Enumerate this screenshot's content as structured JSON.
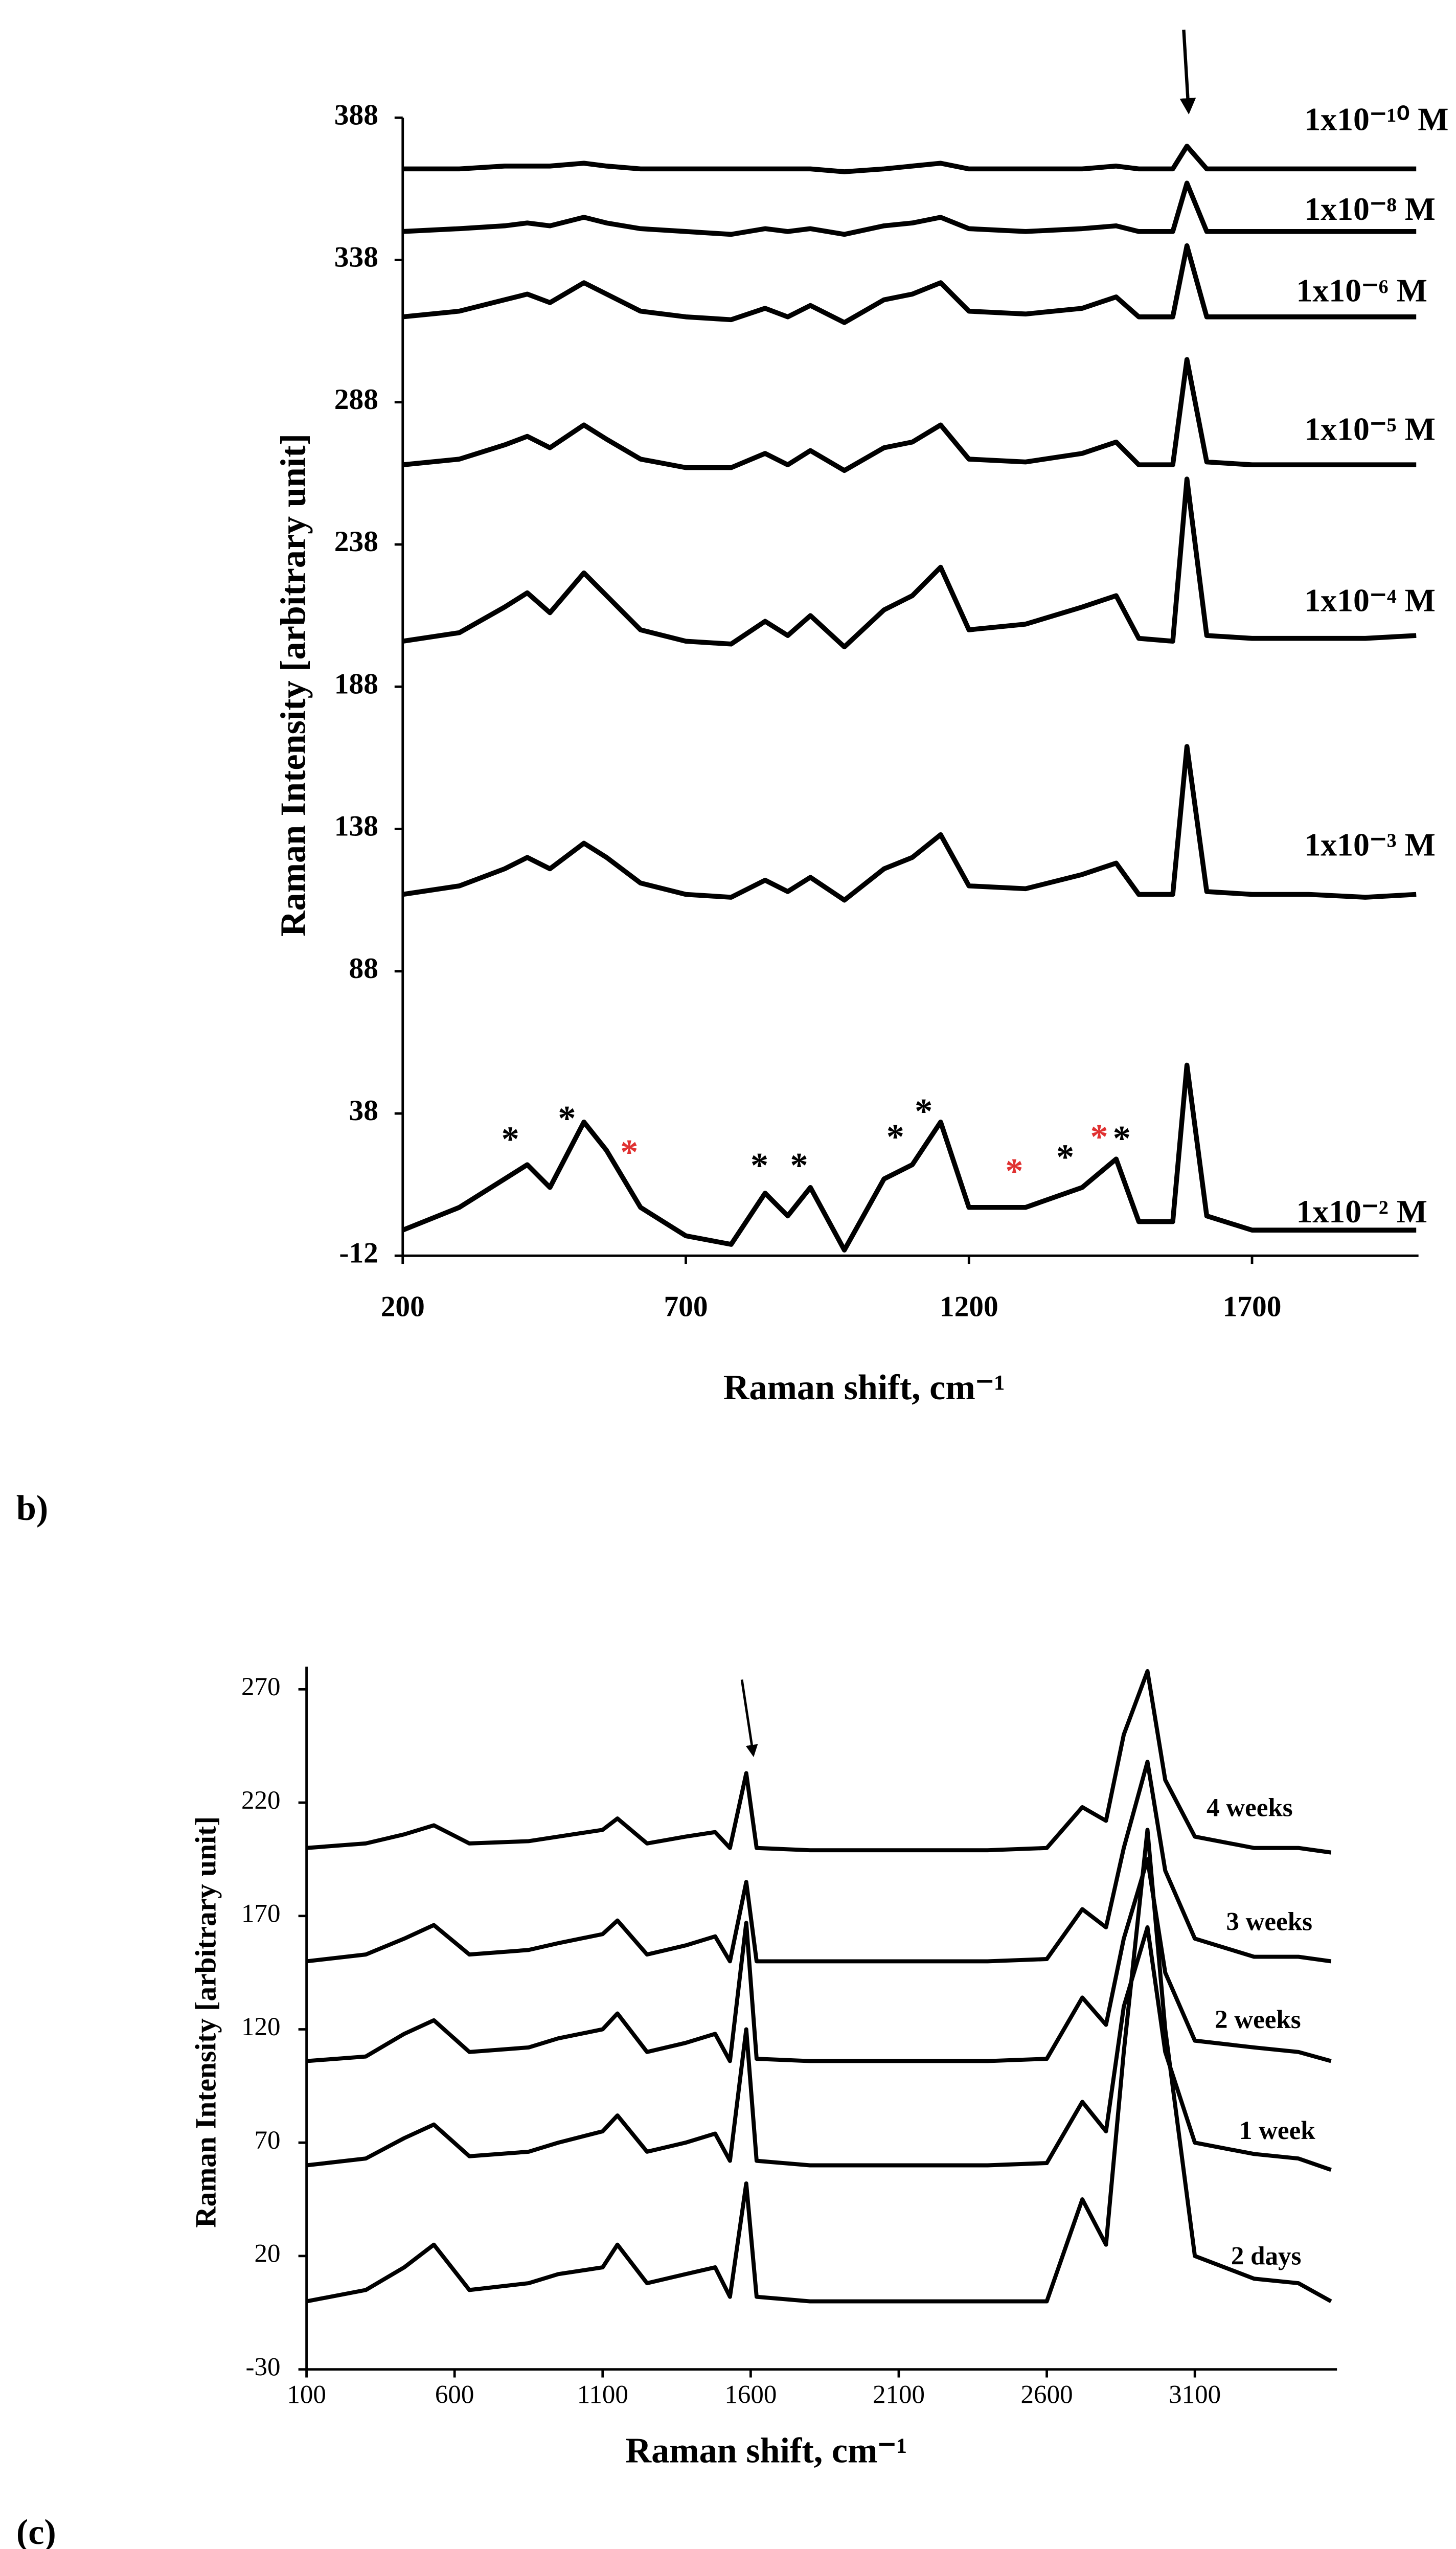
{
  "chart_data": [
    {
      "type": "line",
      "panel_label": "b)",
      "xlabel": "Raman shift, cm⁻¹",
      "ylabel": "Raman Intensity [arbitrary  unit]",
      "x": [
        200,
        300,
        380,
        420,
        460,
        520,
        560,
        620,
        700,
        780,
        840,
        880,
        920,
        980,
        1050,
        1100,
        1150,
        1200,
        1300,
        1400,
        1460,
        1500,
        1560,
        1585,
        1620,
        1700,
        1800,
        1900,
        1990
      ],
      "series": [
        {
          "name": "1x10⁻¹⁰ M",
          "color": "#000000",
          "values": [
            370,
            370,
            371,
            371,
            371,
            372,
            371,
            370,
            370,
            370,
            370,
            370,
            370,
            369,
            370,
            371,
            372,
            370,
            370,
            370,
            371,
            370,
            370,
            378,
            370,
            370,
            370,
            370,
            370
          ]
        },
        {
          "name": "1x10⁻⁸ M",
          "color": "#000000",
          "values": [
            348,
            349,
            350,
            351,
            350,
            353,
            351,
            349,
            348,
            347,
            349,
            348,
            349,
            347,
            350,
            351,
            353,
            349,
            348,
            349,
            350,
            348,
            348,
            365,
            348,
            348,
            348,
            348,
            348
          ]
        },
        {
          "name": "1x10⁻⁶ M",
          "color": "#000000",
          "values": [
            318,
            320,
            324,
            326,
            323,
            330,
            326,
            320,
            318,
            317,
            321,
            318,
            322,
            316,
            324,
            326,
            330,
            320,
            319,
            321,
            325,
            318,
            318,
            343,
            318,
            318,
            318,
            318,
            318
          ]
        },
        {
          "name": "1x10⁻⁵ M",
          "color": "#000000",
          "values": [
            266,
            268,
            273,
            276,
            272,
            280,
            275,
            268,
            265,
            265,
            270,
            266,
            271,
            264,
            272,
            274,
            280,
            268,
            267,
            270,
            274,
            266,
            266,
            303,
            267,
            266,
            266,
            266,
            266
          ]
        },
        {
          "name": "1x10⁻⁴ M",
          "color": "#000000",
          "values": [
            204,
            207,
            216,
            221,
            214,
            228,
            220,
            208,
            204,
            203,
            211,
            206,
            213,
            202,
            215,
            220,
            230,
            208,
            210,
            216,
            220,
            205,
            204,
            261,
            206,
            205,
            205,
            205,
            206
          ]
        },
        {
          "name": "1x10⁻³ M",
          "color": "#000000",
          "values": [
            115,
            118,
            124,
            128,
            124,
            133,
            128,
            119,
            115,
            114,
            120,
            116,
            121,
            113,
            124,
            128,
            136,
            118,
            117,
            122,
            126,
            115,
            115,
            167,
            116,
            115,
            115,
            114,
            115
          ]
        },
        {
          "name": "1x10⁻² M",
          "color": "#000000",
          "values": [
            -3,
            5,
            15,
            20,
            12,
            35,
            25,
            5,
            -5,
            -8,
            10,
            2,
            12,
            -10,
            15,
            20,
            35,
            5,
            5,
            12,
            22,
            0,
            0,
            55,
            2,
            -3,
            -3,
            -3,
            -3
          ]
        }
      ],
      "annotations": [
        {
          "text": "*",
          "x": 390,
          "color": "#000000"
        },
        {
          "text": "*",
          "x": 490,
          "color": "#000000"
        },
        {
          "text": "*",
          "x": 600,
          "color": "#e03030"
        },
        {
          "text": "*",
          "x": 830,
          "color": "#000000"
        },
        {
          "text": "*",
          "x": 900,
          "color": "#000000"
        },
        {
          "text": "*",
          "x": 1070,
          "color": "#000000"
        },
        {
          "text": "*",
          "x": 1120,
          "color": "#000000"
        },
        {
          "text": "*",
          "x": 1280,
          "color": "#e03030"
        },
        {
          "text": "*",
          "x": 1370,
          "color": "#000000"
        },
        {
          "text": "*",
          "x": 1430,
          "color": "#e03030"
        },
        {
          "text": "*",
          "x": 1470,
          "color": "#000000"
        }
      ],
      "xlim": [
        200,
        1994
      ],
      "ylim": [
        -12,
        388
      ],
      "xticks": [
        200,
        700,
        1200,
        1700
      ],
      "yticks": [
        -12,
        38,
        88,
        138,
        188,
        238,
        288,
        338,
        388
      ]
    },
    {
      "type": "line",
      "panel_label": "(c)",
      "xlabel": "Raman shift, cm⁻¹",
      "ylabel": "Raman Intensity [arbitrary  unit]",
      "x": [
        100,
        300,
        430,
        530,
        650,
        850,
        950,
        1100,
        1150,
        1250,
        1380,
        1480,
        1530,
        1585,
        1620,
        1800,
        2100,
        2400,
        2600,
        2720,
        2800,
        2860,
        2940,
        3000,
        3100,
        3300,
        3450,
        3560
      ],
      "series": [
        {
          "name": "4 weeks",
          "color": "#000000",
          "values": [
            200,
            202,
            206,
            210,
            202,
            203,
            205,
            208,
            213,
            202,
            205,
            207,
            200,
            233,
            200,
            199,
            199,
            199,
            200,
            218,
            212,
            250,
            278,
            230,
            205,
            200,
            200,
            198
          ]
        },
        {
          "name": "3 weeks",
          "color": "#000000",
          "values": [
            150,
            153,
            160,
            166,
            153,
            155,
            158,
            162,
            168,
            153,
            157,
            161,
            150,
            185,
            150,
            150,
            150,
            150,
            151,
            173,
            165,
            200,
            238,
            190,
            160,
            152,
            152,
            150
          ]
        },
        {
          "name": "2 weeks",
          "color": "#000000",
          "values": [
            106,
            108,
            118,
            124,
            110,
            112,
            116,
            120,
            127,
            110,
            114,
            118,
            106,
            167,
            107,
            106,
            106,
            106,
            107,
            134,
            122,
            160,
            195,
            145,
            115,
            112,
            110,
            106
          ]
        },
        {
          "name": "1 week",
          "color": "#000000",
          "values": [
            60,
            63,
            72,
            78,
            64,
            66,
            70,
            75,
            82,
            66,
            70,
            74,
            62,
            120,
            62,
            60,
            60,
            60,
            61,
            88,
            75,
            130,
            165,
            110,
            70,
            65,
            63,
            58
          ]
        },
        {
          "name": "2 days",
          "color": "#000000",
          "values": [
            0,
            5,
            15,
            25,
            5,
            8,
            12,
            15,
            25,
            8,
            12,
            15,
            2,
            52,
            2,
            0,
            0,
            0,
            0,
            45,
            25,
            110,
            208,
            120,
            20,
            10,
            8,
            0
          ]
        }
      ],
      "xlim": [
        100,
        3580
      ],
      "ylim": [
        -30,
        280
      ],
      "xticks": [
        100,
        600,
        1100,
        1600,
        2100,
        2600,
        3100
      ],
      "yticks": [
        -30,
        20,
        70,
        120,
        170,
        220,
        270
      ]
    }
  ]
}
